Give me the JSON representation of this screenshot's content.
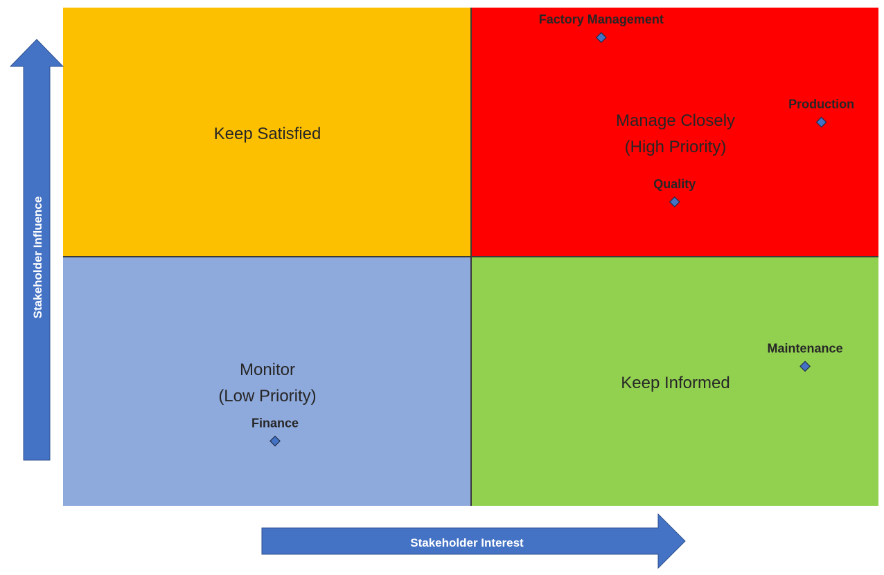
{
  "chart_data": {
    "type": "scatter",
    "title": "",
    "xlabel": "Stakeholder Interest",
    "ylabel": "Stakeholder Influence",
    "xlim": [
      0,
      10
    ],
    "ylim": [
      0,
      10
    ],
    "grid": false,
    "quadrants": [
      {
        "id": "keep-satisfied",
        "lines": [
          "Keep Satisfied"
        ],
        "color": "#fcc000"
      },
      {
        "id": "manage-closely",
        "lines": [
          "Manage Closely",
          "(High Priority)"
        ],
        "color": "#fe0000"
      },
      {
        "id": "monitor",
        "lines": [
          "Monitor",
          "(Low Priority)"
        ],
        "color": "#8ea9db"
      },
      {
        "id": "keep-informed",
        "lines": [
          "Keep Informed"
        ],
        "color": "#92d050"
      }
    ],
    "points": [
      {
        "label": "Factory Management",
        "x": 6.6,
        "y": 9.4
      },
      {
        "label": "Production",
        "x": 9.3,
        "y": 7.7
      },
      {
        "label": "Quality",
        "x": 7.5,
        "y": 6.1
      },
      {
        "label": "Maintenance",
        "x": 9.1,
        "y": 2.8
      },
      {
        "label": "Finance",
        "x": 2.6,
        "y": 1.3
      }
    ],
    "colors": {
      "arrow": "#4472c4",
      "arrow_border": "#2f528f",
      "marker": "#4472c4",
      "label_text": "#262626"
    }
  }
}
